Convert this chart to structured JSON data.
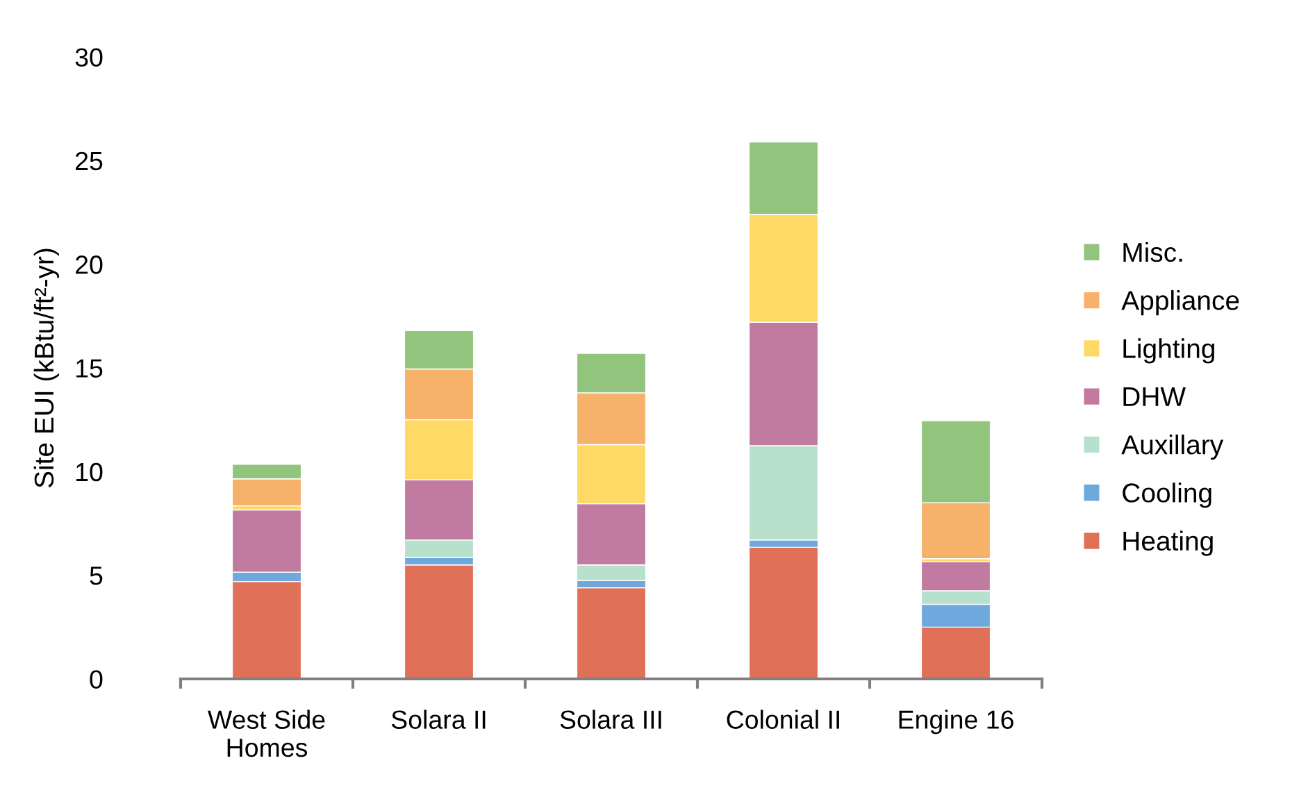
{
  "chart_data": {
    "type": "bar",
    "stacked": true,
    "ylabel": "Site EUI (kBtu/ft²-yr)",
    "categories": [
      "West Side\nHomes",
      "Solara II",
      "Solara III",
      "Colonial II",
      "Engine 16"
    ],
    "ylim": [
      0,
      30
    ],
    "yticks": [
      0,
      5,
      10,
      15,
      20,
      25,
      30
    ],
    "grid": false,
    "legend": "right",
    "series": [
      {
        "name": "Heating",
        "color": "#e07058",
        "values": [
          4.7,
          5.5,
          4.4,
          6.35,
          2.5
        ]
      },
      {
        "name": "Cooling",
        "color": "#6fa8dc",
        "values": [
          0.45,
          0.35,
          0.35,
          0.35,
          1.1
        ]
      },
      {
        "name": "Auxillary",
        "color": "#b7e1cd",
        "values": [
          0,
          0.85,
          0.75,
          4.55,
          0.65
        ]
      },
      {
        "name": "DHW",
        "color": "#c27ba0",
        "values": [
          3.0,
          2.9,
          2.95,
          5.95,
          1.4
        ]
      },
      {
        "name": "Lighting",
        "color": "#ffd966",
        "values": [
          0.2,
          2.9,
          2.85,
          5.2,
          0.15
        ]
      },
      {
        "name": "Appliance",
        "color": "#f6b26b",
        "values": [
          1.3,
          2.45,
          2.5,
          0,
          2.7
        ]
      },
      {
        "name": "Misc.",
        "color": "#93c47d",
        "values": [
          0.7,
          1.85,
          1.9,
          3.5,
          3.95
        ]
      }
    ]
  }
}
